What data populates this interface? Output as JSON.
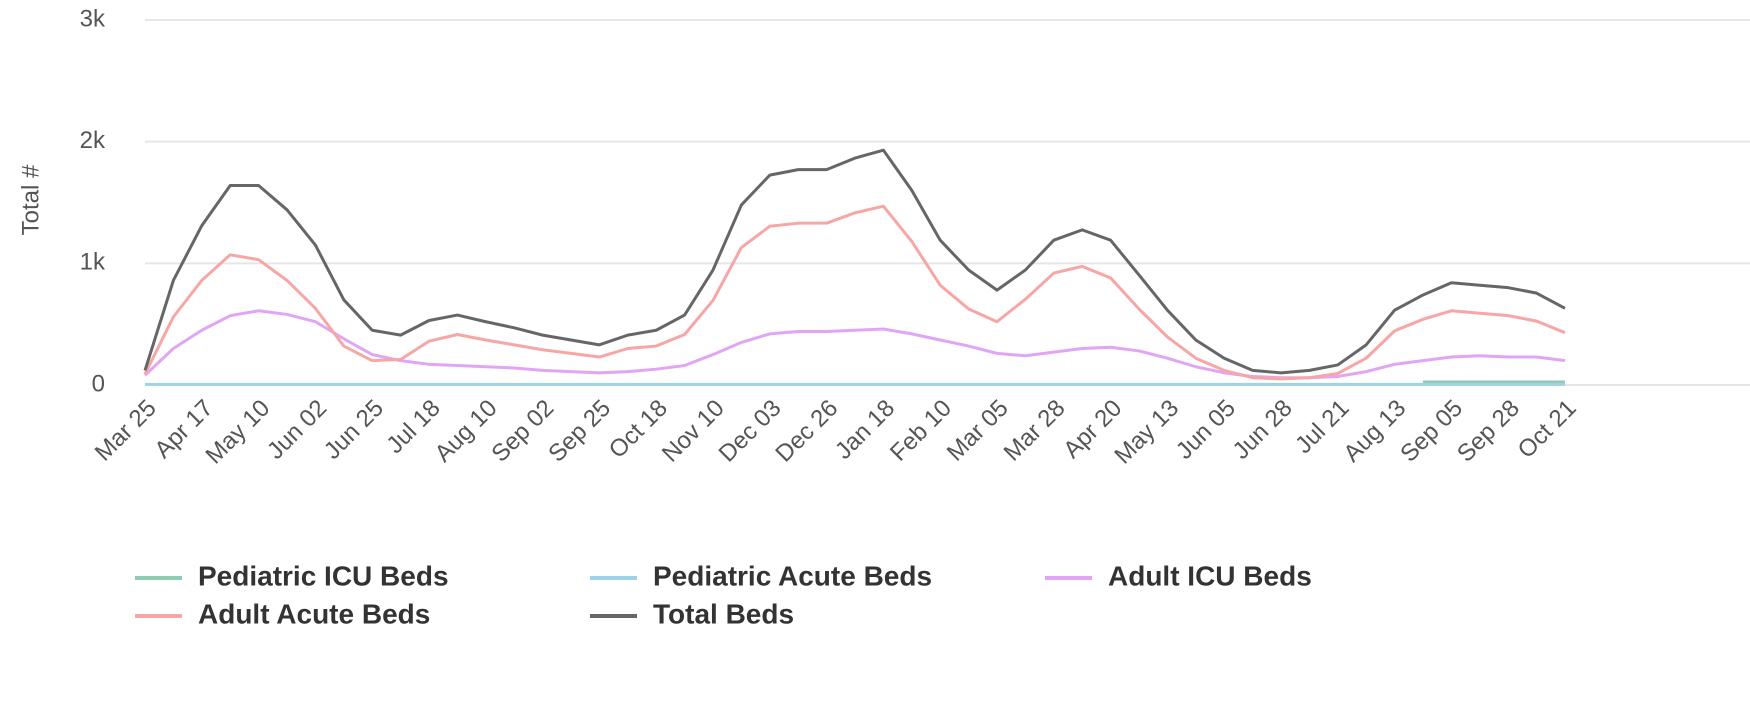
{
  "chart_data": {
    "type": "line",
    "y_label": "Total #",
    "categories": [
      "Mar 25",
      null,
      "Apr 17",
      null,
      "May 10",
      null,
      "Jun 02",
      null,
      "Jun 25",
      null,
      "Jul 18",
      null,
      "Aug 10",
      null,
      "Sep 02",
      null,
      "Sep 25",
      null,
      "Oct 18",
      null,
      "Nov 10",
      null,
      "Dec 03",
      null,
      "Dec 26",
      null,
      "Jan 18",
      null,
      "Feb 10",
      null,
      "Mar 05",
      null,
      "Mar 28",
      null,
      "Apr 20",
      null,
      "May 13",
      null,
      "Jun 05",
      null,
      "Jun 28",
      null,
      "Jul 21",
      null,
      "Aug 13",
      null,
      "Sep 05",
      null,
      "Sep 28",
      null,
      "Oct 21"
    ],
    "ylim": [
      0,
      3000
    ],
    "yticks": [
      0,
      {
        "value": 1000,
        "label": "1k"
      },
      {
        "value": 2000,
        "label": "2k"
      },
      {
        "value": 3000,
        "label": "3k"
      }
    ],
    "grid": true,
    "legend": "bottom",
    "series": [
      {
        "name": "Pediatric ICU Beds",
        "color": "#8fcbb0",
        "values": [
          null,
          null,
          null,
          null,
          null,
          null,
          null,
          null,
          null,
          null,
          null,
          null,
          null,
          null,
          null,
          null,
          null,
          null,
          null,
          null,
          null,
          null,
          null,
          null,
          null,
          null,
          null,
          null,
          null,
          null,
          null,
          null,
          null,
          null,
          null,
          null,
          null,
          null,
          null,
          null,
          null,
          null,
          null,
          null,
          null,
          25,
          25,
          25,
          25,
          25,
          25
        ]
      },
      {
        "name": "Pediatric Acute Beds",
        "color": "#9dd3e3",
        "values": [
          5,
          5,
          5,
          5,
          5,
          5,
          5,
          5,
          5,
          5,
          5,
          5,
          5,
          5,
          5,
          5,
          5,
          5,
          5,
          5,
          5,
          5,
          5,
          5,
          5,
          5,
          5,
          5,
          5,
          5,
          5,
          5,
          5,
          5,
          5,
          5,
          5,
          5,
          5,
          5,
          5,
          5,
          5,
          5,
          5,
          5,
          5,
          5,
          5,
          5,
          5
        ]
      },
      {
        "name": "Adult ICU Beds",
        "color": "#e0a6f5",
        "values": [
          80,
          300,
          450,
          570,
          610,
          580,
          520,
          380,
          250,
          200,
          170,
          160,
          150,
          140,
          120,
          110,
          100,
          110,
          130,
          160,
          250,
          350,
          420,
          440,
          440,
          450,
          460,
          420,
          370,
          320,
          260,
          240,
          270,
          300,
          310,
          280,
          220,
          150,
          100,
          70,
          60,
          60,
          70,
          110,
          170,
          200,
          230,
          240,
          230,
          230,
          200
        ]
      },
      {
        "name": "Adult Acute Beds",
        "color": "#f7a6a6",
        "values": [
          90,
          560,
          860,
          1070,
          1030,
          860,
          630,
          320,
          200,
          210,
          360,
          415,
          370,
          330,
          290,
          260,
          230,
          300,
          320,
          415,
          695,
          1130,
          1305,
          1330,
          1330,
          1415,
          1470,
          1180,
          820,
          625,
          520,
          705,
          920,
          975,
          880,
          625,
          395,
          220,
          120,
          60,
          50,
          60,
          95,
          220,
          445,
          540,
          610,
          590,
          570,
          525,
          430
        ]
      },
      {
        "name": "Total Beds",
        "color": "#666666",
        "values": [
          120,
          860,
          1310,
          1640,
          1640,
          1440,
          1150,
          700,
          450,
          410,
          530,
          575,
          520,
          470,
          410,
          370,
          330,
          410,
          450,
          575,
          945,
          1480,
          1725,
          1770,
          1770,
          1865,
          1930,
          1600,
          1190,
          945,
          780,
          945,
          1190,
          1275,
          1190,
          905,
          615,
          370,
          220,
          120,
          100,
          120,
          165,
          330,
          615,
          740,
          840,
          820,
          800,
          755,
          630
        ]
      }
    ]
  }
}
